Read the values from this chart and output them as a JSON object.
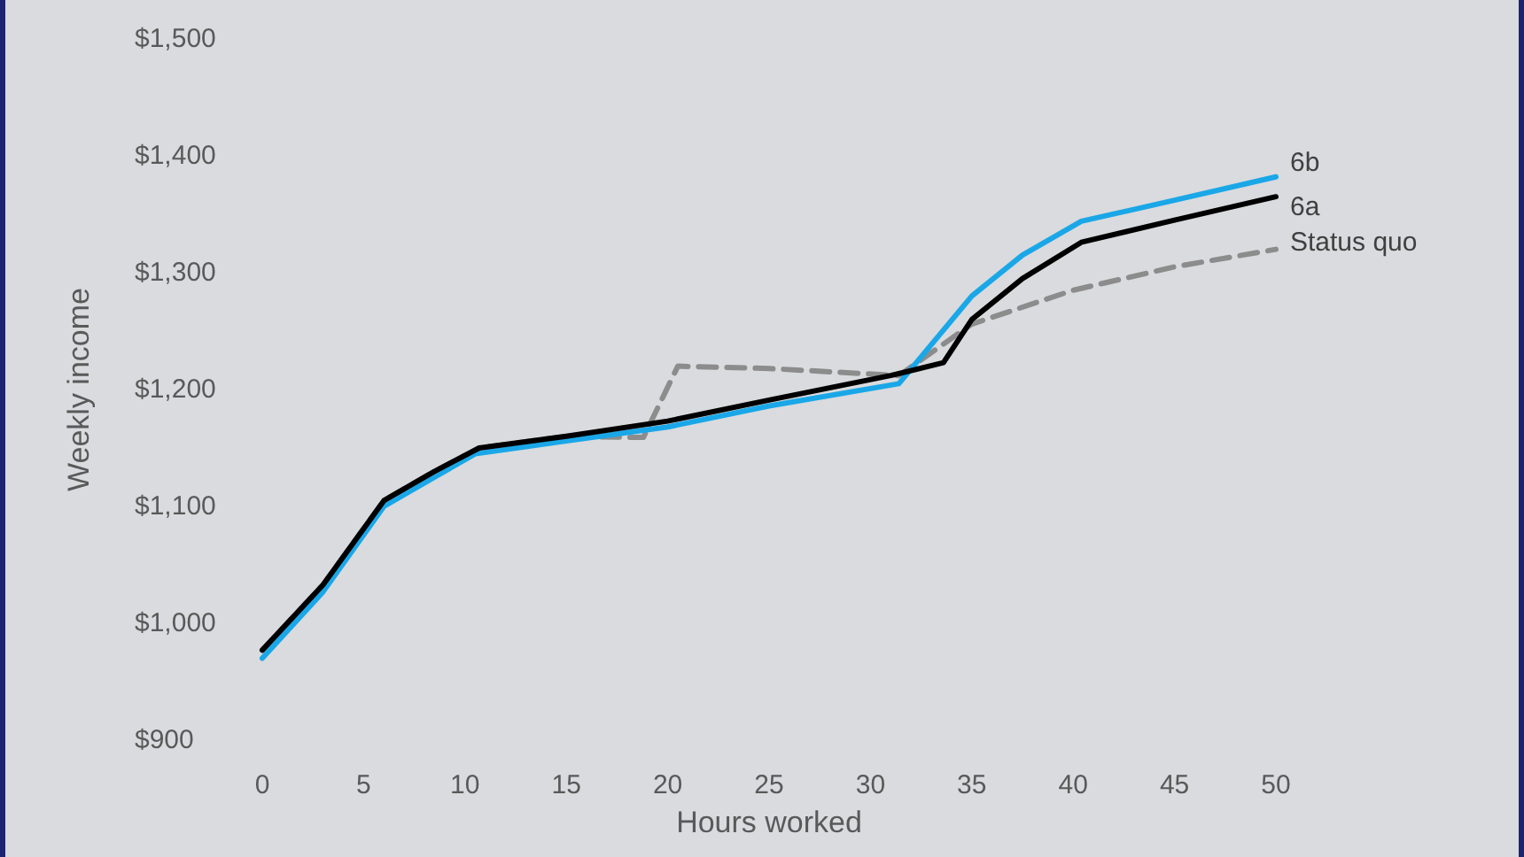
{
  "chart_data": {
    "type": "line",
    "xlabel": "Hours worked",
    "ylabel": "Weekly income",
    "xlim": [
      0,
      50
    ],
    "xticks": [
      0,
      5,
      10,
      15,
      20,
      25,
      30,
      35,
      40,
      45,
      50
    ],
    "ylim": [
      900,
      1500
    ],
    "yticks": [
      {
        "value": 900,
        "label": "$900"
      },
      {
        "value": 1000,
        "label": "$1,000"
      },
      {
        "value": 1100,
        "label": "$1,100"
      },
      {
        "value": 1200,
        "label": "$1,200"
      },
      {
        "value": 1300,
        "label": "$1,300"
      },
      {
        "value": 1400,
        "label": "$1,400"
      },
      {
        "value": 1500,
        "label": "$1,500"
      }
    ],
    "grid": false,
    "legend": false,
    "marker": "none",
    "series": [
      {
        "name": "Status quo",
        "color": "#8c8c8c",
        "line_style": "dashed",
        "x": [
          0,
          3,
          6,
          8.5,
          10.7,
          15,
          18.8,
          20.5,
          25,
          31.4,
          35,
          40,
          45,
          50
        ],
        "values": [
          977,
          1033,
          1105,
          1130,
          1150,
          1160,
          1159,
          1220,
          1218,
          1212,
          1256,
          1285,
          1305,
          1320
        ]
      },
      {
        "name": "6b",
        "color": "#1aa7e8",
        "line_style": "solid",
        "x": [
          0,
          3,
          6,
          8.5,
          10.5,
          15,
          20,
          25,
          31.4,
          35,
          37.5,
          40.4,
          45,
          50
        ],
        "values": [
          970,
          1027,
          1100,
          1125,
          1145,
          1156,
          1168,
          1186,
          1205,
          1280,
          1315,
          1344,
          1362,
          1382
        ]
      },
      {
        "name": "6a",
        "color": "#000000",
        "line_style": "solid",
        "x": [
          0,
          3,
          6,
          8.5,
          10.7,
          15,
          20,
          25,
          31,
          33.6,
          35,
          37.5,
          40.4,
          45,
          50
        ],
        "values": [
          977,
          1033,
          1105,
          1130,
          1150,
          1160,
          1173,
          1191,
          1212,
          1223,
          1260,
          1295,
          1326,
          1345,
          1365
        ]
      }
    ]
  }
}
